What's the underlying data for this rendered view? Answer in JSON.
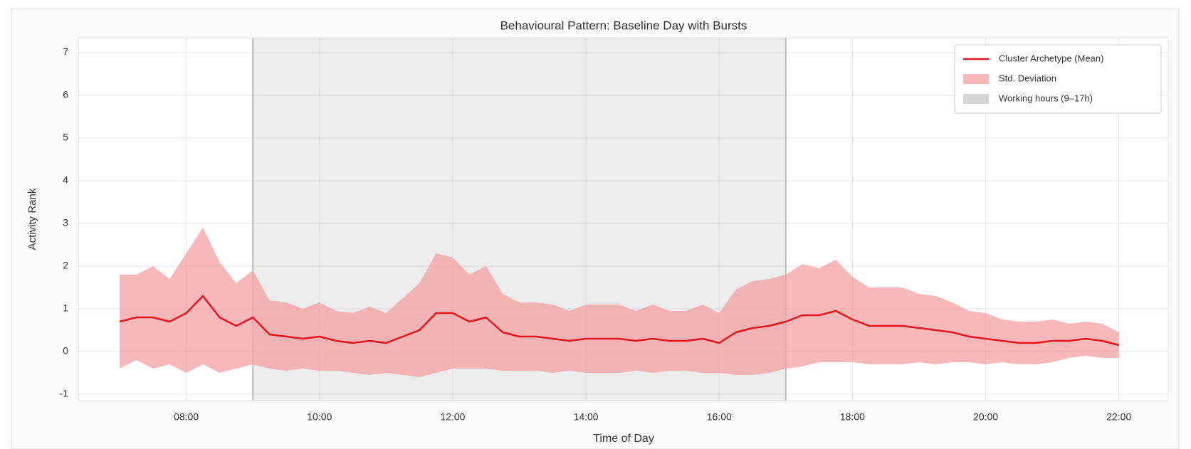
{
  "chart_data": {
    "type": "line",
    "title": "Behavioural Pattern: Baseline Day with Bursts",
    "x_label": "Time of Day",
    "y_label": "Activity Rank",
    "x": [
      7,
      7.25,
      7.5,
      7.75,
      8,
      8.25,
      8.5,
      8.75,
      9,
      9.25,
      9.5,
      9.75,
      10,
      10.25,
      10.5,
      10.75,
      11,
      11.25,
      11.5,
      11.75,
      12,
      12.25,
      12.5,
      12.75,
      13,
      13.25,
      13.5,
      13.75,
      14,
      14.25,
      14.5,
      14.75,
      15,
      15.25,
      15.5,
      15.75,
      16,
      16.25,
      16.5,
      16.75,
      17,
      17.25,
      17.5,
      17.75,
      18,
      18.25,
      18.5,
      18.75,
      19,
      19.25,
      19.5,
      19.75,
      20,
      20.25,
      20.5,
      20.75,
      21,
      21.25,
      21.5,
      21.75,
      22
    ],
    "series": [
      {
        "name": "Cluster Archetype (Mean)",
        "color": "#e8141c",
        "values": [
          0.7,
          0.8,
          0.8,
          0.7,
          0.9,
          1.3,
          0.8,
          0.6,
          0.8,
          0.4,
          0.35,
          0.3,
          0.35,
          0.25,
          0.2,
          0.25,
          0.2,
          0.35,
          0.5,
          0.9,
          0.9,
          0.7,
          0.8,
          0.45,
          0.35,
          0.35,
          0.3,
          0.25,
          0.3,
          0.3,
          0.3,
          0.25,
          0.3,
          0.25,
          0.25,
          0.3,
          0.2,
          0.45,
          0.55,
          0.6,
          0.7,
          0.85,
          0.85,
          0.95,
          0.75,
          0.6,
          0.6,
          0.6,
          0.55,
          0.5,
          0.45,
          0.35,
          0.3,
          0.25,
          0.2,
          0.2,
          0.25,
          0.25,
          0.3,
          0.25,
          0.15
        ]
      },
      {
        "name": "Std. Deviation",
        "color": "#f4a0a2",
        "values": [
          1.1,
          1.0,
          1.2,
          1.0,
          1.4,
          1.6,
          1.3,
          1.0,
          1.1,
          0.8,
          0.8,
          0.7,
          0.8,
          0.7,
          0.7,
          0.8,
          0.7,
          0.9,
          1.1,
          1.4,
          1.3,
          1.1,
          1.2,
          0.9,
          0.8,
          0.8,
          0.8,
          0.7,
          0.8,
          0.8,
          0.8,
          0.7,
          0.8,
          0.7,
          0.7,
          0.8,
          0.7,
          1.0,
          1.1,
          1.1,
          1.1,
          1.2,
          1.1,
          1.2,
          1.0,
          0.9,
          0.9,
          0.9,
          0.8,
          0.8,
          0.7,
          0.6,
          0.6,
          0.5,
          0.5,
          0.5,
          0.5,
          0.4,
          0.4,
          0.4,
          0.3
        ]
      }
    ],
    "span": {
      "name": "Working hours (9–17h)",
      "x": [
        9,
        17
      ],
      "color": "#c8c8c8"
    },
    "xlim": [
      6.38,
      22.74
    ],
    "ylim": [
      -1.15,
      7.35
    ],
    "xticks": [
      {
        "value": 8,
        "label": "08:00"
      },
      {
        "value": 10,
        "label": "10:00"
      },
      {
        "value": 12,
        "label": "12:00"
      },
      {
        "value": 14,
        "label": "14:00"
      },
      {
        "value": 16,
        "label": "16:00"
      },
      {
        "value": 18,
        "label": "18:00"
      },
      {
        "value": 20,
        "label": "20:00"
      },
      {
        "value": 22,
        "label": "22:00"
      }
    ],
    "yticks": [
      -1,
      0,
      1,
      2,
      3,
      4,
      5,
      6,
      7
    ],
    "grid": true,
    "legend": "upper right"
  }
}
